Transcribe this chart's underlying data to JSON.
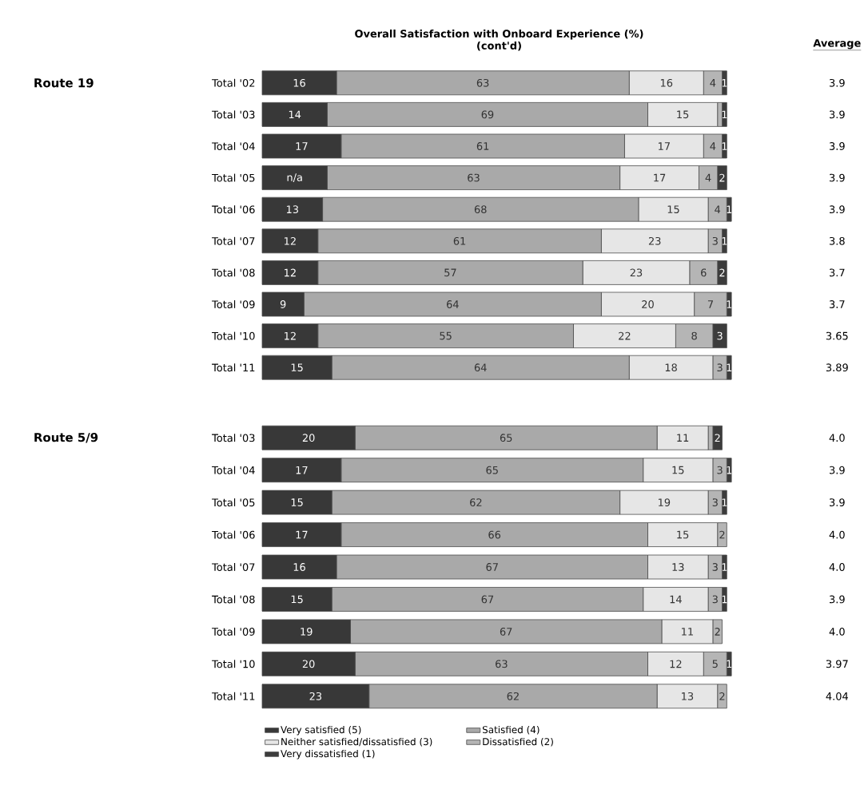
{
  "chart_data": [
    {
      "type": "bar",
      "orientation": "horizontal",
      "stacked": true,
      "title": "Overall Satisfaction with Onboard Experience (%)",
      "subtitle": "(cont'd)",
      "ylabel": "Route 19",
      "y2label": "Average",
      "tick_labels": "y",
      "legend": false,
      "categories": [
        "Total '02",
        "Total '03",
        "Total '04",
        "Total '05",
        "Total '06",
        "Total '07",
        "Total '08",
        "Total '09",
        "Total '10",
        "Total '11"
      ],
      "series": [
        {
          "color": "#383838",
          "values": [
            16,
            14,
            17,
            14,
            13,
            12,
            12,
            9,
            12,
            15
          ],
          "value_labels": [
            "16",
            "14",
            "17",
            "n/a",
            "13",
            "12",
            "12",
            "9",
            "12",
            "15"
          ]
        },
        {
          "color": "#a9a9a9",
          "values": [
            63,
            69,
            61,
            63,
            68,
            61,
            57,
            64,
            55,
            64
          ],
          "value_labels": [
            "63",
            "69",
            "61",
            "63",
            "68",
            "61",
            "57",
            "64",
            "55",
            "64"
          ]
        },
        {
          "color": "#e6e6e6",
          "values": [
            16,
            15,
            17,
            17,
            15,
            23,
            23,
            20,
            22,
            18
          ],
          "value_labels": [
            "16",
            "15",
            "17",
            "17",
            "15",
            "23",
            "23",
            "20",
            "22",
            "18"
          ]
        },
        {
          "color": "#b5b5b5",
          "values": [
            4,
            1,
            4,
            4,
            4,
            3,
            6,
            7,
            8,
            3
          ],
          "value_labels": [
            "4",
            null,
            "4",
            "4",
            "4",
            "3",
            "6",
            "7",
            "8",
            "3"
          ]
        },
        {
          "color": "#3c3c3c",
          "values": [
            1,
            1,
            1,
            2,
            1,
            1,
            2,
            1,
            3,
            1
          ],
          "value_labels": [
            "1",
            "1",
            "1",
            "2",
            "1",
            "1",
            "2",
            "1",
            "3",
            "1"
          ]
        }
      ],
      "annotations": [
        "3.9",
        "3.9",
        "3.9",
        "3.9",
        "3.9",
        "3.8",
        "3.7",
        "3.7",
        "3.65",
        "3.89"
      ]
    },
    {
      "type": "bar",
      "orientation": "horizontal",
      "stacked": true,
      "ylabel": "Route 5/9",
      "tick_labels": "y",
      "legend": "bottom",
      "categories": [
        "Total '03",
        "Total '04",
        "Total '05",
        "Total '06",
        "Total '07",
        "Total '08",
        "Total '09",
        "Total '10",
        "Total '11"
      ],
      "series": [
        {
          "name": "Very satisfied (5)",
          "color": "#383838",
          "values": [
            20,
            17,
            15,
            17,
            16,
            15,
            19,
            20,
            23
          ],
          "value_labels": [
            "20",
            "17",
            "15",
            "17",
            "16",
            "15",
            "19",
            "20",
            "23"
          ]
        },
        {
          "name": "Satisfied (4)",
          "color": "#a9a9a9",
          "values": [
            65,
            65,
            62,
            66,
            67,
            67,
            67,
            63,
            62
          ],
          "value_labels": [
            "65",
            "65",
            "62",
            "66",
            "67",
            "67",
            "67",
            "63",
            "62"
          ]
        },
        {
          "name": "Neither satisfied/dissatisfied (3)",
          "color": "#e6e6e6",
          "values": [
            11,
            15,
            19,
            15,
            13,
            14,
            11,
            12,
            13
          ],
          "value_labels": [
            "11",
            "15",
            "19",
            "15",
            "13",
            "14",
            "11",
            "12",
            "13"
          ]
        },
        {
          "name": "Dissatisfied (2)",
          "color": "#b5b5b5",
          "values": [
            1,
            3,
            3,
            2,
            3,
            3,
            2,
            5,
            2
          ],
          "value_labels": [
            null,
            "3",
            "3",
            "2",
            "3",
            "3",
            "2",
            "5",
            "2"
          ]
        },
        {
          "name": "Very dissatisfied (1)",
          "color": "#3c3c3c",
          "values": [
            2,
            1,
            1,
            0,
            1,
            1,
            0,
            1,
            0
          ],
          "value_labels": [
            "2",
            "1",
            "1",
            null,
            "1",
            "1",
            null,
            "1",
            null
          ]
        }
      ],
      "annotations": [
        "4.0",
        "3.9",
        "3.9",
        "4.0",
        "4.0",
        "3.9",
        "4.0",
        "3.97",
        "4.04"
      ]
    }
  ]
}
